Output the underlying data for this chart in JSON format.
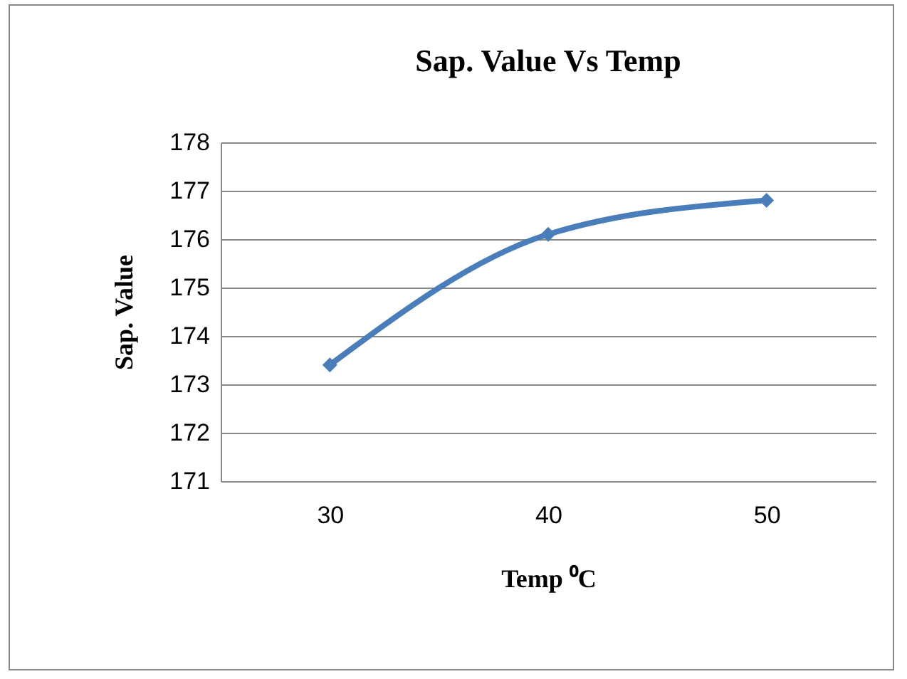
{
  "chart_data": {
    "type": "line",
    "title": "Sap. Value Vs Temp",
    "xlabel": "Temp ⁰C",
    "ylabel": "Sap. Value",
    "categories": [
      "30",
      "40",
      "50"
    ],
    "series": [
      {
        "color": "#4a7ebb",
        "values": [
          173.4,
          176.1,
          176.8
        ]
      }
    ],
    "ylim": [
      171,
      178
    ],
    "yticks": [
      171,
      172,
      173,
      174,
      175,
      176,
      177,
      178
    ],
    "grid": "y",
    "legend": false,
    "marker": "diamond",
    "line_style": "solid"
  }
}
